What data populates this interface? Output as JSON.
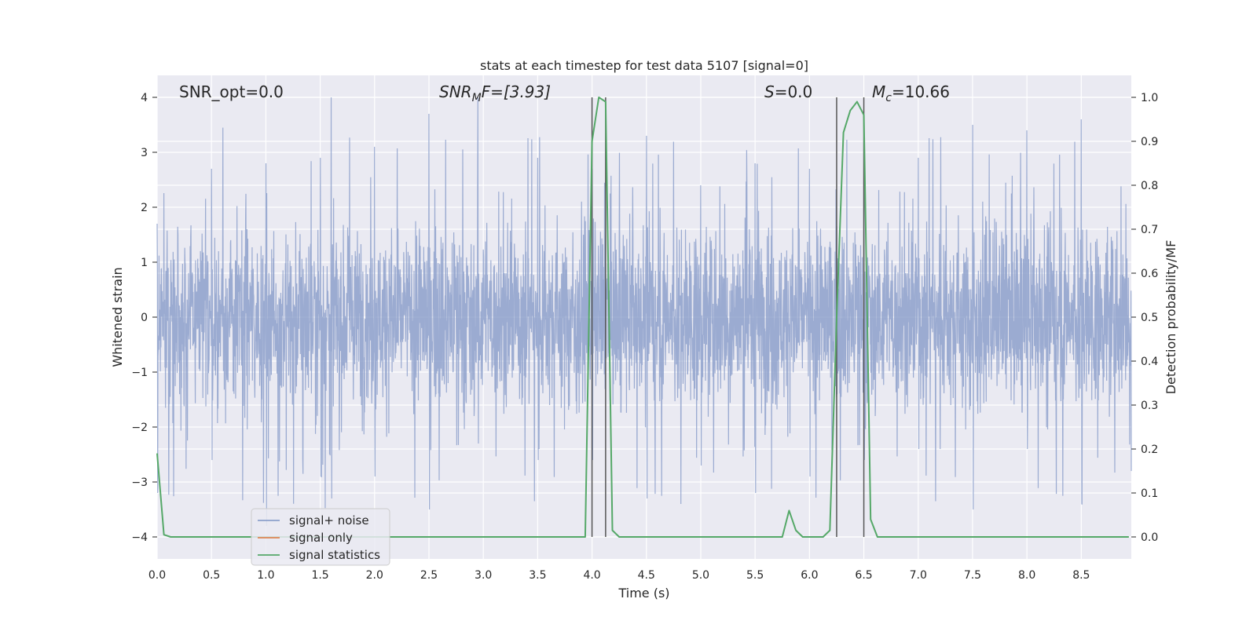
{
  "chart_data": {
    "type": "line",
    "title": "stats at each timestep for test data 5107 [signal=0]",
    "xlabel": "Time (s)",
    "ylabel_left": "Whitened strain",
    "ylabel_right": "Detection probability/MF",
    "xlim": [
      0.0,
      8.96
    ],
    "ylim_left": [
      -4.4,
      4.4
    ],
    "ylim_right": [
      -0.05,
      1.05
    ],
    "xticks": [
      "0.0",
      "0.5",
      "1.0",
      "1.5",
      "2.0",
      "2.5",
      "3.0",
      "3.5",
      "4.0",
      "4.5",
      "5.0",
      "5.5",
      "6.0",
      "6.5",
      "7.0",
      "7.5",
      "8.0",
      "8.5"
    ],
    "yticks_left": [
      "4",
      "3",
      "2",
      "1",
      "0",
      "−1",
      "−2",
      "−3",
      "−4"
    ],
    "yticks_right": [
      "1.0",
      "0.9",
      "0.8",
      "0.7",
      "0.6",
      "0.5",
      "0.4",
      "0.3",
      "0.2",
      "0.1",
      "0.0"
    ],
    "grid": true,
    "legend_position": "lower-left",
    "annotations": {
      "snr_opt": "SNR_opt=0.0",
      "snr_mf_base": "SNR",
      "snr_mf_sub": "M",
      "snr_mf_tail": "F=[3.93]",
      "s_base": "S",
      "s_tail": "=0.0",
      "mc_base": "M",
      "mc_sub": "c",
      "mc_tail": "=10.66"
    },
    "vertical_lines": [
      {
        "x": 4.0,
        "ymin": -4.0,
        "ymax": 4.0
      },
      {
        "x": 4.125,
        "ymin": -4.0,
        "ymax": 4.0
      },
      {
        "x": 6.25,
        "ymin": -4.0,
        "ymax": 4.0
      },
      {
        "x": 6.5,
        "ymin": -4.0,
        "ymax": 4.0
      }
    ],
    "series": [
      {
        "name": "signal+ noise",
        "axis": "left",
        "color": "#8da0cb",
        "style": "dense noise trace, approx. Gaussian with std 0.8; extremes range about -3.8 to 4.0 (peaks near x=1.6, 2.95)",
        "sample_x": [
          0.0,
          0.5,
          1.0,
          1.5,
          1.6,
          2.0,
          2.5,
          2.95,
          3.5,
          4.0,
          4.5,
          5.0,
          5.5,
          6.0,
          6.5,
          7.0,
          7.5,
          8.0,
          8.5,
          8.96
        ],
        "sample_y_max": [
          1.7,
          2.7,
          2.8,
          2.9,
          4.0,
          3.1,
          3.7,
          4.0,
          2.9,
          2.7,
          3.3,
          2.4,
          2.8,
          2.7,
          3.4,
          2.9,
          3.5,
          3.4,
          3.6,
          2.3
        ],
        "sample_y_min": [
          -3.2,
          -2.6,
          -3.8,
          -2.9,
          -3.3,
          -2.9,
          -3.5,
          -2.3,
          -2.6,
          -2.6,
          -3.3,
          -2.7,
          -3.2,
          -2.9,
          -2.6,
          -2.4,
          -3.5,
          -2.4,
          -3.4,
          -2.8
        ]
      },
      {
        "name": "signal only",
        "axis": "left",
        "color": "#dd8452",
        "x": [
          0.0,
          8.96
        ],
        "y": [
          0.0,
          0.0
        ]
      },
      {
        "name": "signal statistics",
        "axis": "right",
        "color": "#55a868",
        "x": [
          0.0,
          0.0625,
          0.125,
          3.9375,
          4.0,
          4.0625,
          4.125,
          4.1875,
          4.25,
          5.75,
          5.8125,
          5.875,
          5.9375,
          6.125,
          6.1875,
          6.25,
          6.3125,
          6.375,
          6.4375,
          6.5,
          6.5625,
          6.625,
          8.9375
        ],
        "y": [
          0.19,
          0.005,
          0.0,
          0.0,
          0.9,
          1.0,
          0.99,
          0.015,
          0.0,
          0.0,
          0.06,
          0.015,
          0.0,
          0.0,
          0.015,
          0.5,
          0.92,
          0.97,
          0.99,
          0.96,
          0.04,
          0.0,
          0.0
        ]
      }
    ]
  }
}
